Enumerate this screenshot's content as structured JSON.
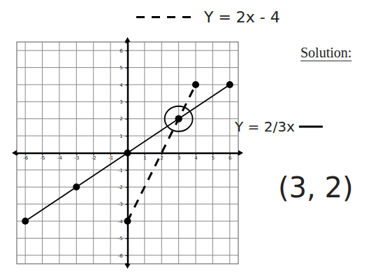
{
  "chart_data": {
    "type": "line",
    "xlim": [
      -6.5,
      6.5
    ],
    "ylim": [
      -6.5,
      6.5
    ],
    "xticks": [
      -6,
      -5,
      -4,
      -3,
      -2,
      -1,
      1,
      2,
      3,
      4,
      5,
      6
    ],
    "yticks": [
      -6,
      -5,
      -4,
      -3,
      -2,
      -1,
      1,
      2,
      3,
      4,
      5,
      6
    ],
    "grid": true,
    "series": [
      {
        "name": "Y = 2/3x",
        "color": "#000000",
        "marker": "circle",
        "line_style": "solid",
        "x": [
          -6,
          -3,
          0,
          3,
          6
        ],
        "values": [
          -4,
          -2,
          0,
          2,
          4
        ]
      },
      {
        "name": "Y = 2x - 4",
        "color": "#000000",
        "marker": "circle",
        "line_style": "dashed",
        "x": [
          0,
          3,
          4
        ],
        "values": [
          -4,
          2,
          4
        ]
      }
    ],
    "annotations": [
      "Solution:",
      "(3, 2)"
    ]
  }
}
